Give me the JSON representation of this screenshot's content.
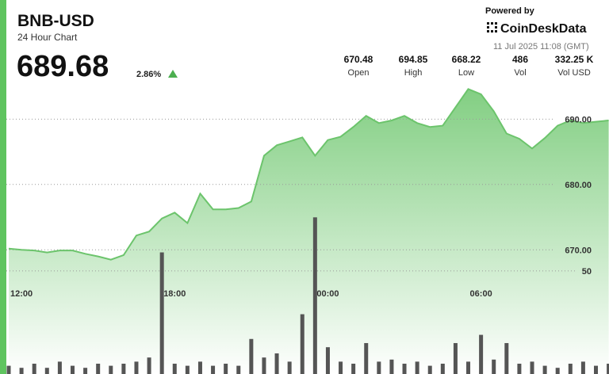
{
  "header": {
    "title": "BNB-USD",
    "subtitle": "24 Hour Chart",
    "price": "689.68",
    "change": "2.86%",
    "powered_by": "Powered by",
    "brand": "CoinDeskData",
    "timestamp": "11 Jul 2025 11:08 (GMT)",
    "stats": [
      {
        "value": "670.48",
        "label": "Open"
      },
      {
        "value": "694.85",
        "label": "High"
      },
      {
        "value": "668.22",
        "label": "Low"
      },
      {
        "value": "486",
        "label": "Vol"
      },
      {
        "value": "332.25 K",
        "label": "Vol USD"
      }
    ]
  },
  "chart_data": {
    "type": "area",
    "categories": [
      null,
      "12:00",
      null,
      null,
      null,
      null,
      null,
      null,
      null,
      null,
      null,
      null,
      null,
      "18:00",
      null,
      null,
      null,
      null,
      null,
      null,
      null,
      null,
      null,
      null,
      null,
      "00:00",
      null,
      null,
      null,
      null,
      null,
      null,
      null,
      null,
      null,
      null,
      null,
      "06:00",
      null,
      null,
      null,
      null,
      null,
      null,
      null,
      null,
      null,
      null
    ],
    "series": [
      {
        "type": "area",
        "color": "#6cc46c",
        "values": [
          670.2,
          670.0,
          669.9,
          669.6,
          669.9,
          669.9,
          669.4,
          669.0,
          668.5,
          669.2,
          672.2,
          672.8,
          674.8,
          675.7,
          674.1,
          678.6,
          676.2,
          676.2,
          676.4,
          677.4,
          684.4,
          686.0,
          686.6,
          687.2,
          684.4,
          686.8,
          687.3,
          688.8,
          690.5,
          689.4,
          689.8,
          690.5,
          689.4,
          688.8,
          689.0,
          691.8,
          694.6,
          693.8,
          691.2,
          687.8,
          687.0,
          685.5,
          687.1,
          689.0,
          689.8,
          689.4,
          689.6,
          689.8
        ]
      },
      {
        "type": "bar",
        "axis": "y2",
        "color": "#555555",
        "values": [
          4,
          3,
          5,
          3,
          6,
          4,
          3,
          5,
          4,
          5,
          6,
          8,
          59,
          5,
          4,
          6,
          4,
          5,
          4,
          17,
          8,
          10,
          6,
          29,
          76,
          13,
          6,
          5,
          15,
          6,
          7,
          5,
          6,
          4,
          5,
          15,
          6,
          19,
          7,
          15,
          5,
          6,
          4,
          3,
          5,
          6,
          4,
          5
        ]
      }
    ],
    "ylim": [
      666.4,
      696.1
    ],
    "yticks": [
      {
        "value": 670,
        "label": "670.00"
      },
      {
        "value": 680,
        "label": "680.00"
      },
      {
        "value": 690,
        "label": "690.00"
      }
    ],
    "y2lim": [
      0,
      143
    ],
    "y2ticks": [
      50
    ],
    "grid": true
  }
}
